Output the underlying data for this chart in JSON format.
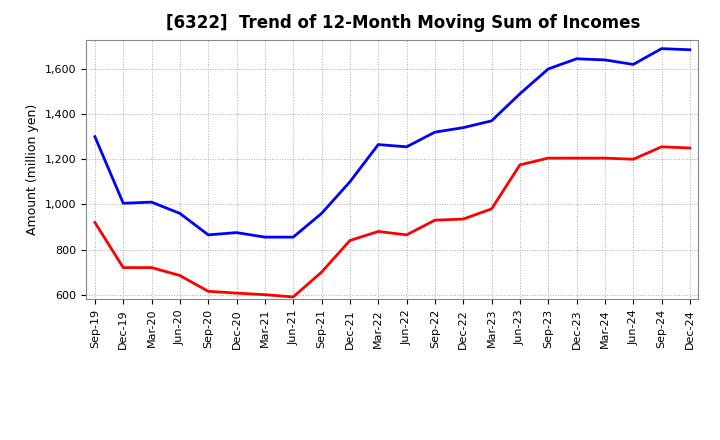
{
  "title": "[6322]  Trend of 12-Month Moving Sum of Incomes",
  "ylabel": "Amount (million yen)",
  "x_labels": [
    "Sep-19",
    "Dec-19",
    "Mar-20",
    "Jun-20",
    "Sep-20",
    "Dec-20",
    "Mar-21",
    "Jun-21",
    "Sep-21",
    "Dec-21",
    "Mar-22",
    "Jun-22",
    "Sep-22",
    "Dec-22",
    "Mar-23",
    "Jun-23",
    "Sep-23",
    "Dec-23",
    "Mar-24",
    "Jun-24",
    "Sep-24",
    "Dec-24"
  ],
  "ordinary_income": [
    1300,
    1005,
    1010,
    960,
    865,
    875,
    855,
    855,
    960,
    1100,
    1265,
    1255,
    1320,
    1340,
    1370,
    1490,
    1600,
    1645,
    1640,
    1620,
    1690,
    1685
  ],
  "net_income": [
    920,
    720,
    720,
    685,
    615,
    607,
    600,
    590,
    700,
    840,
    880,
    865,
    930,
    935,
    980,
    1175,
    1205,
    1205,
    1205,
    1200,
    1255,
    1250
  ],
  "ordinary_income_color": "#0000FF",
  "net_income_color": "#FF0000",
  "ylim": [
    580,
    1730
  ],
  "yticks": [
    600,
    800,
    1000,
    1200,
    1400,
    1600
  ],
  "background_color": "#FFFFFF",
  "grid_color": "#AAAAAA",
  "title_fontsize": 12,
  "label_fontsize": 9,
  "tick_fontsize": 8,
  "legend_fontsize": 9,
  "line_width": 2.0
}
